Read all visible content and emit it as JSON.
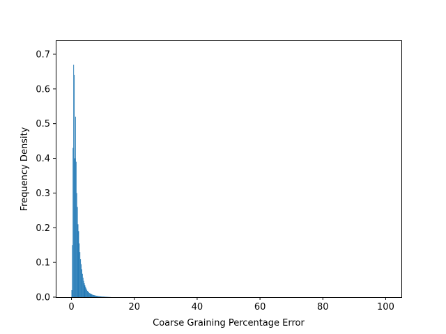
{
  "chart_data": {
    "type": "bar",
    "title": "",
    "xlabel": "Coarse Graining Percentage Error",
    "ylabel": "Frequency Density",
    "xlim": [
      -5,
      105
    ],
    "ylim": [
      0,
      0.74
    ],
    "x_ticks": [
      0,
      20,
      40,
      60,
      80,
      100
    ],
    "x_tick_labels": [
      "0",
      "20",
      "40",
      "60",
      "80",
      "100"
    ],
    "y_ticks": [
      0.0,
      0.1,
      0.2,
      0.3,
      0.4,
      0.5,
      0.6,
      0.7
    ],
    "y_tick_labels": [
      "0.0",
      "0.1",
      "0.2",
      "0.3",
      "0.4",
      "0.5",
      "0.6",
      "0.7"
    ],
    "grid": false,
    "bar_color": "#1f77b4",
    "bin_width": 0.2,
    "bin_starts": [
      0.0,
      0.2,
      0.4,
      0.6,
      0.8,
      1.0,
      1.2,
      1.4,
      1.6,
      1.8,
      2.0,
      2.2,
      2.4,
      2.6,
      2.8,
      3.0,
      3.2,
      3.4,
      3.6,
      3.8,
      4.0,
      4.2,
      4.4,
      4.6,
      4.8,
      5.0,
      5.2,
      5.4,
      5.6,
      5.8,
      6.0,
      6.2,
      6.4,
      6.6,
      6.8,
      7.0,
      7.2,
      7.4,
      7.6,
      7.8,
      8.0,
      8.2,
      8.4,
      8.6,
      8.8,
      9.0,
      9.2,
      9.4,
      9.6,
      9.8,
      10.0,
      10.2,
      10.4,
      10.6,
      10.8,
      11.0,
      11.2,
      11.4,
      11.6,
      11.8,
      12.0,
      12.2,
      12.4
    ],
    "values": [
      0.02,
      0.15,
      0.43,
      0.67,
      0.64,
      0.4,
      0.52,
      0.39,
      0.3,
      0.26,
      0.21,
      0.19,
      0.155,
      0.13,
      0.11,
      0.095,
      0.08,
      0.067,
      0.056,
      0.047,
      0.04,
      0.034,
      0.029,
      0.025,
      0.021,
      0.018,
      0.016,
      0.014,
      0.012,
      0.011,
      0.01,
      0.009,
      0.008,
      0.007,
      0.0065,
      0.006,
      0.0055,
      0.005,
      0.0045,
      0.004,
      0.0035,
      0.003,
      0.0028,
      0.0026,
      0.0024,
      0.0022,
      0.002,
      0.0018,
      0.0016,
      0.0015,
      0.0014,
      0.0013,
      0.0012,
      0.0011,
      0.001,
      0.0009,
      0.0008,
      0.0007,
      0.0006,
      0.0005,
      0.0004,
      0.0003,
      0.0002
    ]
  }
}
